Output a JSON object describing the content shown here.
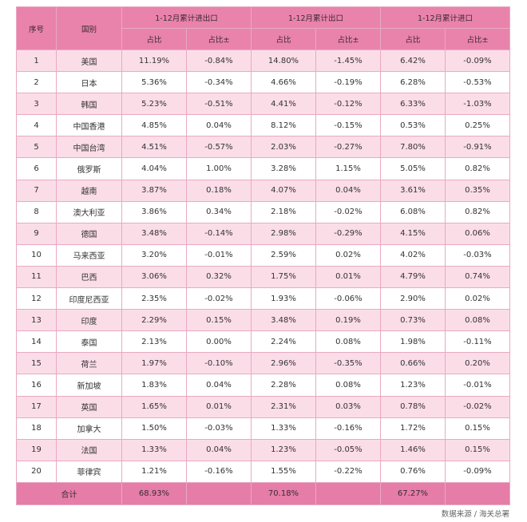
{
  "headers": {
    "index": "序号",
    "country": "国别",
    "group_total": "1-12月累计进出口",
    "group_export": "1-12月累计出口",
    "group_import": "1-12月累计进口",
    "share": "占比",
    "share_change": "占比±"
  },
  "rows": [
    [
      "1",
      "美国",
      "11.19%",
      "-0.84%",
      "14.80%",
      "-1.45%",
      "6.42%",
      "-0.09%"
    ],
    [
      "2",
      "日本",
      "5.36%",
      "-0.34%",
      "4.66%",
      "-0.19%",
      "6.28%",
      "-0.53%"
    ],
    [
      "3",
      "韩国",
      "5.23%",
      "-0.51%",
      "4.41%",
      "-0.12%",
      "6.33%",
      "-1.03%"
    ],
    [
      "4",
      "中国香港",
      "4.85%",
      "0.04%",
      "8.12%",
      "-0.15%",
      "0.53%",
      "0.25%"
    ],
    [
      "5",
      "中国台湾",
      "4.51%",
      "-0.57%",
      "2.03%",
      "-0.27%",
      "7.80%",
      "-0.91%"
    ],
    [
      "6",
      "俄罗斯",
      "4.04%",
      "1.00%",
      "3.28%",
      "1.15%",
      "5.05%",
      "0.82%"
    ],
    [
      "7",
      "越南",
      "3.87%",
      "0.18%",
      "4.07%",
      "0.04%",
      "3.61%",
      "0.35%"
    ],
    [
      "8",
      "澳大利亚",
      "3.86%",
      "0.34%",
      "2.18%",
      "-0.02%",
      "6.08%",
      "0.82%"
    ],
    [
      "9",
      "德国",
      "3.48%",
      "-0.14%",
      "2.98%",
      "-0.29%",
      "4.15%",
      "0.06%"
    ],
    [
      "10",
      "马来西亚",
      "3.20%",
      "-0.01%",
      "2.59%",
      "0.02%",
      "4.02%",
      "-0.03%"
    ],
    [
      "11",
      "巴西",
      "3.06%",
      "0.32%",
      "1.75%",
      "0.01%",
      "4.79%",
      "0.74%"
    ],
    [
      "12",
      "印度尼西亚",
      "2.35%",
      "-0.02%",
      "1.93%",
      "-0.06%",
      "2.90%",
      "0.02%"
    ],
    [
      "13",
      "印度",
      "2.29%",
      "0.15%",
      "3.48%",
      "0.19%",
      "0.73%",
      "0.08%"
    ],
    [
      "14",
      "泰国",
      "2.13%",
      "0.00%",
      "2.24%",
      "0.08%",
      "1.98%",
      "-0.11%"
    ],
    [
      "15",
      "荷兰",
      "1.97%",
      "-0.10%",
      "2.96%",
      "-0.35%",
      "0.66%",
      "0.20%"
    ],
    [
      "16",
      "新加坡",
      "1.83%",
      "0.04%",
      "2.28%",
      "0.08%",
      "1.23%",
      "-0.01%"
    ],
    [
      "17",
      "英国",
      "1.65%",
      "0.01%",
      "2.31%",
      "0.03%",
      "0.78%",
      "-0.02%"
    ],
    [
      "18",
      "加拿大",
      "1.50%",
      "-0.03%",
      "1.33%",
      "-0.16%",
      "1.72%",
      "0.15%"
    ],
    [
      "19",
      "法国",
      "1.33%",
      "0.04%",
      "1.23%",
      "-0.05%",
      "1.46%",
      "0.15%"
    ],
    [
      "20",
      "菲律宾",
      "1.21%",
      "-0.16%",
      "1.55%",
      "-0.22%",
      "0.76%",
      "-0.09%"
    ]
  ],
  "total": {
    "label": "合计",
    "total_share": "68.93%",
    "export_share": "70.18%",
    "import_share": "67.27%"
  },
  "source": "数据来源 / 海关总署",
  "colors": {
    "header": "#e983ab",
    "odd_row": "#fbdde8",
    "total_row": "#e57da8"
  }
}
